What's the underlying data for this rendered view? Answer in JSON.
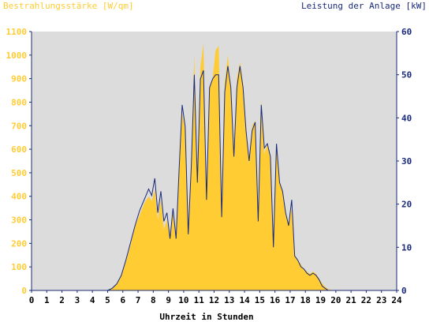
{
  "chart_data": {
    "type": "area",
    "title": "",
    "ylabel_left": "Bestrahlungsstärke [W/qm]",
    "ylabel_right": "Leistung der Anlage [kW]",
    "xlabel": "Uhrzeit in Stunden",
    "xlim": [
      0,
      24
    ],
    "ylim_left": [
      0,
      1100
    ],
    "ylim_right": [
      0,
      60
    ],
    "x_ticks": [
      "0",
      "1",
      "2",
      "3",
      "4",
      "5",
      "6",
      "7",
      "8",
      "9",
      "10",
      "11",
      "12",
      "13",
      "14",
      "15",
      "16",
      "17",
      "18",
      "19",
      "20",
      "21",
      "22",
      "23",
      "24"
    ],
    "y_left_ticks": [
      "0",
      "100",
      "200",
      "300",
      "400",
      "500",
      "600",
      "700",
      "800",
      "900",
      "1000",
      "1100"
    ],
    "y_right_ticks": [
      "0",
      "10",
      "20",
      "30",
      "40",
      "50",
      "60"
    ],
    "grid": false,
    "colors": {
      "background": "#dcdcdc",
      "irradiance_fill": "#ffcc33",
      "power_line": "#1a2a7a",
      "axis": "#1a2a7a"
    },
    "series": [
      {
        "name": "Bestrahlungsstärke [W/qm]",
        "axis": "left",
        "style": "area",
        "x": [
          5.0,
          5.3,
          5.6,
          5.9,
          6.2,
          6.5,
          6.8,
          7.1,
          7.4,
          7.7,
          7.9,
          8.1,
          8.3,
          8.5,
          8.7,
          8.9,
          9.1,
          9.3,
          9.5,
          9.7,
          9.9,
          10.1,
          10.3,
          10.5,
          10.7,
          10.9,
          11.1,
          11.3,
          11.5,
          11.7,
          11.9,
          12.1,
          12.3,
          12.5,
          12.7,
          12.9,
          13.1,
          13.3,
          13.5,
          13.7,
          13.9,
          14.1,
          14.3,
          14.5,
          14.7,
          14.9,
          15.1,
          15.3,
          15.5,
          15.7,
          15.9,
          16.1,
          16.3,
          16.5,
          16.7,
          16.9,
          17.1,
          17.3,
          17.5,
          17.7,
          17.9,
          18.1,
          18.3,
          18.5,
          18.7,
          18.9,
          19.1,
          19.3,
          19.5,
          19.7,
          19.9,
          20.1
        ],
        "y": [
          0,
          10,
          25,
          60,
          120,
          190,
          270,
          320,
          370,
          400,
          380,
          430,
          300,
          390,
          260,
          300,
          220,
          330,
          210,
          500,
          760,
          680,
          230,
          520,
          1000,
          450,
          950,
          1050,
          380,
          860,
          900,
          1020,
          1040,
          330,
          880,
          1000,
          850,
          560,
          900,
          970,
          880,
          680,
          540,
          700,
          720,
          290,
          810,
          580,
          620,
          560,
          180,
          620,
          460,
          420,
          330,
          280,
          350,
          150,
          130,
          110,
          90,
          80,
          70,
          80,
          70,
          50,
          30,
          15,
          5,
          2,
          0,
          0
        ]
      },
      {
        "name": "Leistung der Anlage [kW]",
        "axis": "right",
        "style": "line",
        "x": [
          5.0,
          5.3,
          5.6,
          5.9,
          6.2,
          6.5,
          6.8,
          7.1,
          7.4,
          7.7,
          7.9,
          8.1,
          8.3,
          8.5,
          8.7,
          8.9,
          9.1,
          9.3,
          9.5,
          9.7,
          9.9,
          10.1,
          10.3,
          10.5,
          10.7,
          10.9,
          11.1,
          11.3,
          11.5,
          11.7,
          11.9,
          12.1,
          12.3,
          12.5,
          12.7,
          12.9,
          13.1,
          13.3,
          13.5,
          13.7,
          13.9,
          14.1,
          14.3,
          14.5,
          14.7,
          14.9,
          15.1,
          15.3,
          15.5,
          15.7,
          15.9,
          16.1,
          16.3,
          16.5,
          16.7,
          16.9,
          17.1,
          17.3,
          17.5,
          17.7,
          17.9,
          18.1,
          18.3,
          18.5,
          18.7,
          18.9,
          19.1,
          19.3,
          19.5,
          19.7,
          19.9,
          20.1
        ],
        "y": [
          0,
          0.5,
          1.5,
          3.5,
          7,
          11,
          15,
          18.5,
          21,
          23.5,
          22,
          26,
          18,
          23,
          16,
          18,
          12,
          19,
          12,
          28,
          43,
          38,
          13,
          29,
          50,
          25,
          49,
          51,
          21,
          47,
          49,
          50,
          50,
          17,
          46,
          52,
          47,
          31,
          47,
          52,
          47,
          37,
          30,
          37,
          39,
          16,
          43,
          33,
          34,
          31,
          10,
          34,
          25,
          23,
          18,
          15,
          21,
          8,
          7,
          5.5,
          5,
          4,
          3.5,
          4,
          3.5,
          2.5,
          1,
          0.5,
          0,
          0,
          0,
          0
        ]
      }
    ]
  }
}
